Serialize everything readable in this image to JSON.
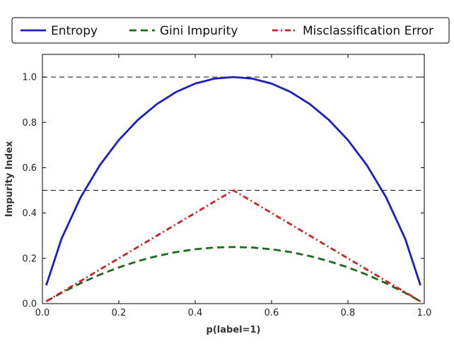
{
  "chart_data": {
    "type": "line",
    "xlabel": "p(label=1)",
    "ylabel": "Impurity Index",
    "xlim": [
      0.0,
      1.0
    ],
    "ylim": [
      0.0,
      1.1
    ],
    "x_ticks": [
      "0.0",
      "0.2",
      "0.4",
      "0.6",
      "0.8",
      "1.0"
    ],
    "y_ticks": [
      "0.0",
      "0.2",
      "0.4",
      "0.6",
      "0.8",
      "1.0"
    ],
    "reference_lines": [
      1.0,
      0.5
    ],
    "legend_position": "top-outside",
    "x": [
      0.01,
      0.05,
      0.1,
      0.15,
      0.2,
      0.25,
      0.3,
      0.35,
      0.4,
      0.45,
      0.5,
      0.55,
      0.6,
      0.65,
      0.7,
      0.75,
      0.8,
      0.85,
      0.9,
      0.95,
      0.99
    ],
    "series": [
      {
        "name": "Entropy",
        "color": "#1f1fbf",
        "style": "solid",
        "values": [
          0.081,
          0.286,
          0.469,
          0.61,
          0.722,
          0.811,
          0.881,
          0.934,
          0.971,
          0.993,
          1.0,
          0.993,
          0.971,
          0.934,
          0.881,
          0.811,
          0.722,
          0.61,
          0.469,
          0.286,
          0.081
        ]
      },
      {
        "name": "Gini Impurity",
        "color": "#1a6b1a",
        "style": "dashed",
        "values": [
          0.0099,
          0.0475,
          0.09,
          0.1275,
          0.16,
          0.1875,
          0.21,
          0.2275,
          0.24,
          0.2475,
          0.25,
          0.2475,
          0.24,
          0.2275,
          0.21,
          0.1875,
          0.16,
          0.1275,
          0.09,
          0.0475,
          0.0099
        ]
      },
      {
        "name": "Misclassification Error",
        "color": "#cc2222",
        "style": "dashdot",
        "values": [
          0.01,
          0.05,
          0.1,
          0.15,
          0.2,
          0.25,
          0.3,
          0.35,
          0.4,
          0.45,
          0.5,
          0.45,
          0.4,
          0.35,
          0.3,
          0.25,
          0.2,
          0.15,
          0.1,
          0.05,
          0.01
        ]
      }
    ]
  }
}
